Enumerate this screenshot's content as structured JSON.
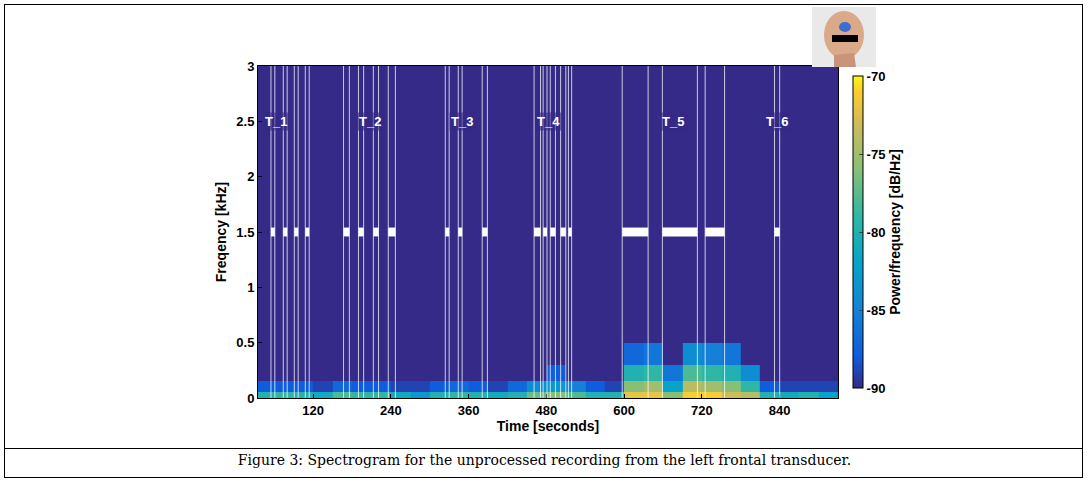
{
  "chart_data": {
    "type": "heatmap",
    "caption": "Figure 3: Spectrogram for the unprocessed recording from the left frontal transducer.",
    "xlabel": "Time [seconds]",
    "ylabel": "Freqency [kHz]",
    "colorbar_label": "Power/frequency [dB/Hz]",
    "xlim": [
      35,
      930
    ],
    "xticks": [
      120,
      240,
      360,
      480,
      600,
      720,
      840
    ],
    "ylim": [
      0,
      3
    ],
    "yticks": [
      0,
      0.5,
      1,
      1.5,
      2,
      2.5,
      3
    ],
    "clim": [
      -90,
      -70
    ],
    "cticks": [
      -90,
      -85,
      -80,
      -75,
      -70
    ],
    "x_edges": [
      30,
      60,
      90,
      120,
      150,
      180,
      210,
      240,
      270,
      300,
      330,
      360,
      390,
      420,
      450,
      480,
      510,
      540,
      570,
      600,
      630,
      660,
      690,
      720,
      750,
      780,
      810,
      840,
      870,
      900,
      930
    ],
    "y_edges": [
      0,
      0.05,
      0.15,
      0.3,
      0.5,
      3
    ],
    "cells": [
      [
        -80,
        -79,
        -80,
        -81,
        -78,
        -79,
        -79,
        -81,
        -83,
        -80,
        -79,
        -80,
        -81,
        -80,
        -77,
        -76,
        -78,
        -80,
        -80,
        -72,
        -72,
        -76,
        -71,
        -71,
        -73,
        -74,
        -80,
        -81,
        -80,
        -82
      ],
      [
        -88,
        -88,
        -88,
        -89,
        -87,
        -88,
        -88,
        -89,
        -89,
        -88,
        -87,
        -88,
        -89,
        -87,
        -84,
        -83,
        -85,
        -88,
        -89,
        -76,
        -75,
        -82,
        -74,
        -75,
        -76,
        -79,
        -88,
        -89,
        -89,
        -89
      ],
      [
        -90,
        -90,
        -90,
        -90,
        -90,
        -90,
        -90,
        -90,
        -90,
        -90,
        -90,
        -90,
        -90,
        -90,
        -90,
        -88,
        -90,
        -90,
        -90,
        -80,
        -79,
        -86,
        -78,
        -79,
        -80,
        -84,
        -90,
        -90,
        -90,
        -90
      ],
      [
        -90,
        -90,
        -90,
        -90,
        -90,
        -90,
        -90,
        -90,
        -90,
        -90,
        -90,
        -90,
        -90,
        -90,
        -90,
        -90,
        -90,
        -90,
        -90,
        -87,
        -86,
        -90,
        -84,
        -85,
        -86,
        -90,
        -90,
        -90,
        -90,
        -90
      ],
      [
        -90,
        -90,
        -90,
        -90,
        -90,
        -90,
        -90,
        -90,
        -90,
        -90,
        -90,
        -90,
        -90,
        -90,
        -90,
        -90,
        -90,
        -90,
        -90,
        -90,
        -90,
        -90,
        -90,
        -90,
        -90,
        -90,
        -90,
        -90,
        -90,
        -90
      ]
    ],
    "marker_frequency": 1.5,
    "events": [
      [
        55,
        61
      ],
      [
        74,
        80
      ],
      [
        91,
        97
      ],
      [
        108,
        114
      ],
      [
        167,
        176
      ],
      [
        190,
        198
      ],
      [
        213,
        221
      ],
      [
        236,
        247
      ],
      [
        324,
        330
      ],
      [
        344,
        350
      ],
      [
        381,
        389
      ],
      [
        461,
        471
      ],
      [
        475,
        481
      ],
      [
        486,
        494
      ],
      [
        502,
        510
      ],
      [
        514,
        519
      ],
      [
        597,
        637
      ],
      [
        659,
        713
      ],
      [
        725,
        755
      ],
      [
        832,
        840
      ]
    ],
    "labels": [
      {
        "text": "T_1",
        "x": 62,
        "y": 2.5
      },
      {
        "text": "T_2",
        "x": 208,
        "y": 2.5
      },
      {
        "text": "T_3",
        "x": 350,
        "y": 2.5
      },
      {
        "text": "T_4",
        "x": 483,
        "y": 2.5
      },
      {
        "text": "T_5",
        "x": 676,
        "y": 2.5
      },
      {
        "text": "T_6",
        "x": 836,
        "y": 2.5
      }
    ]
  }
}
